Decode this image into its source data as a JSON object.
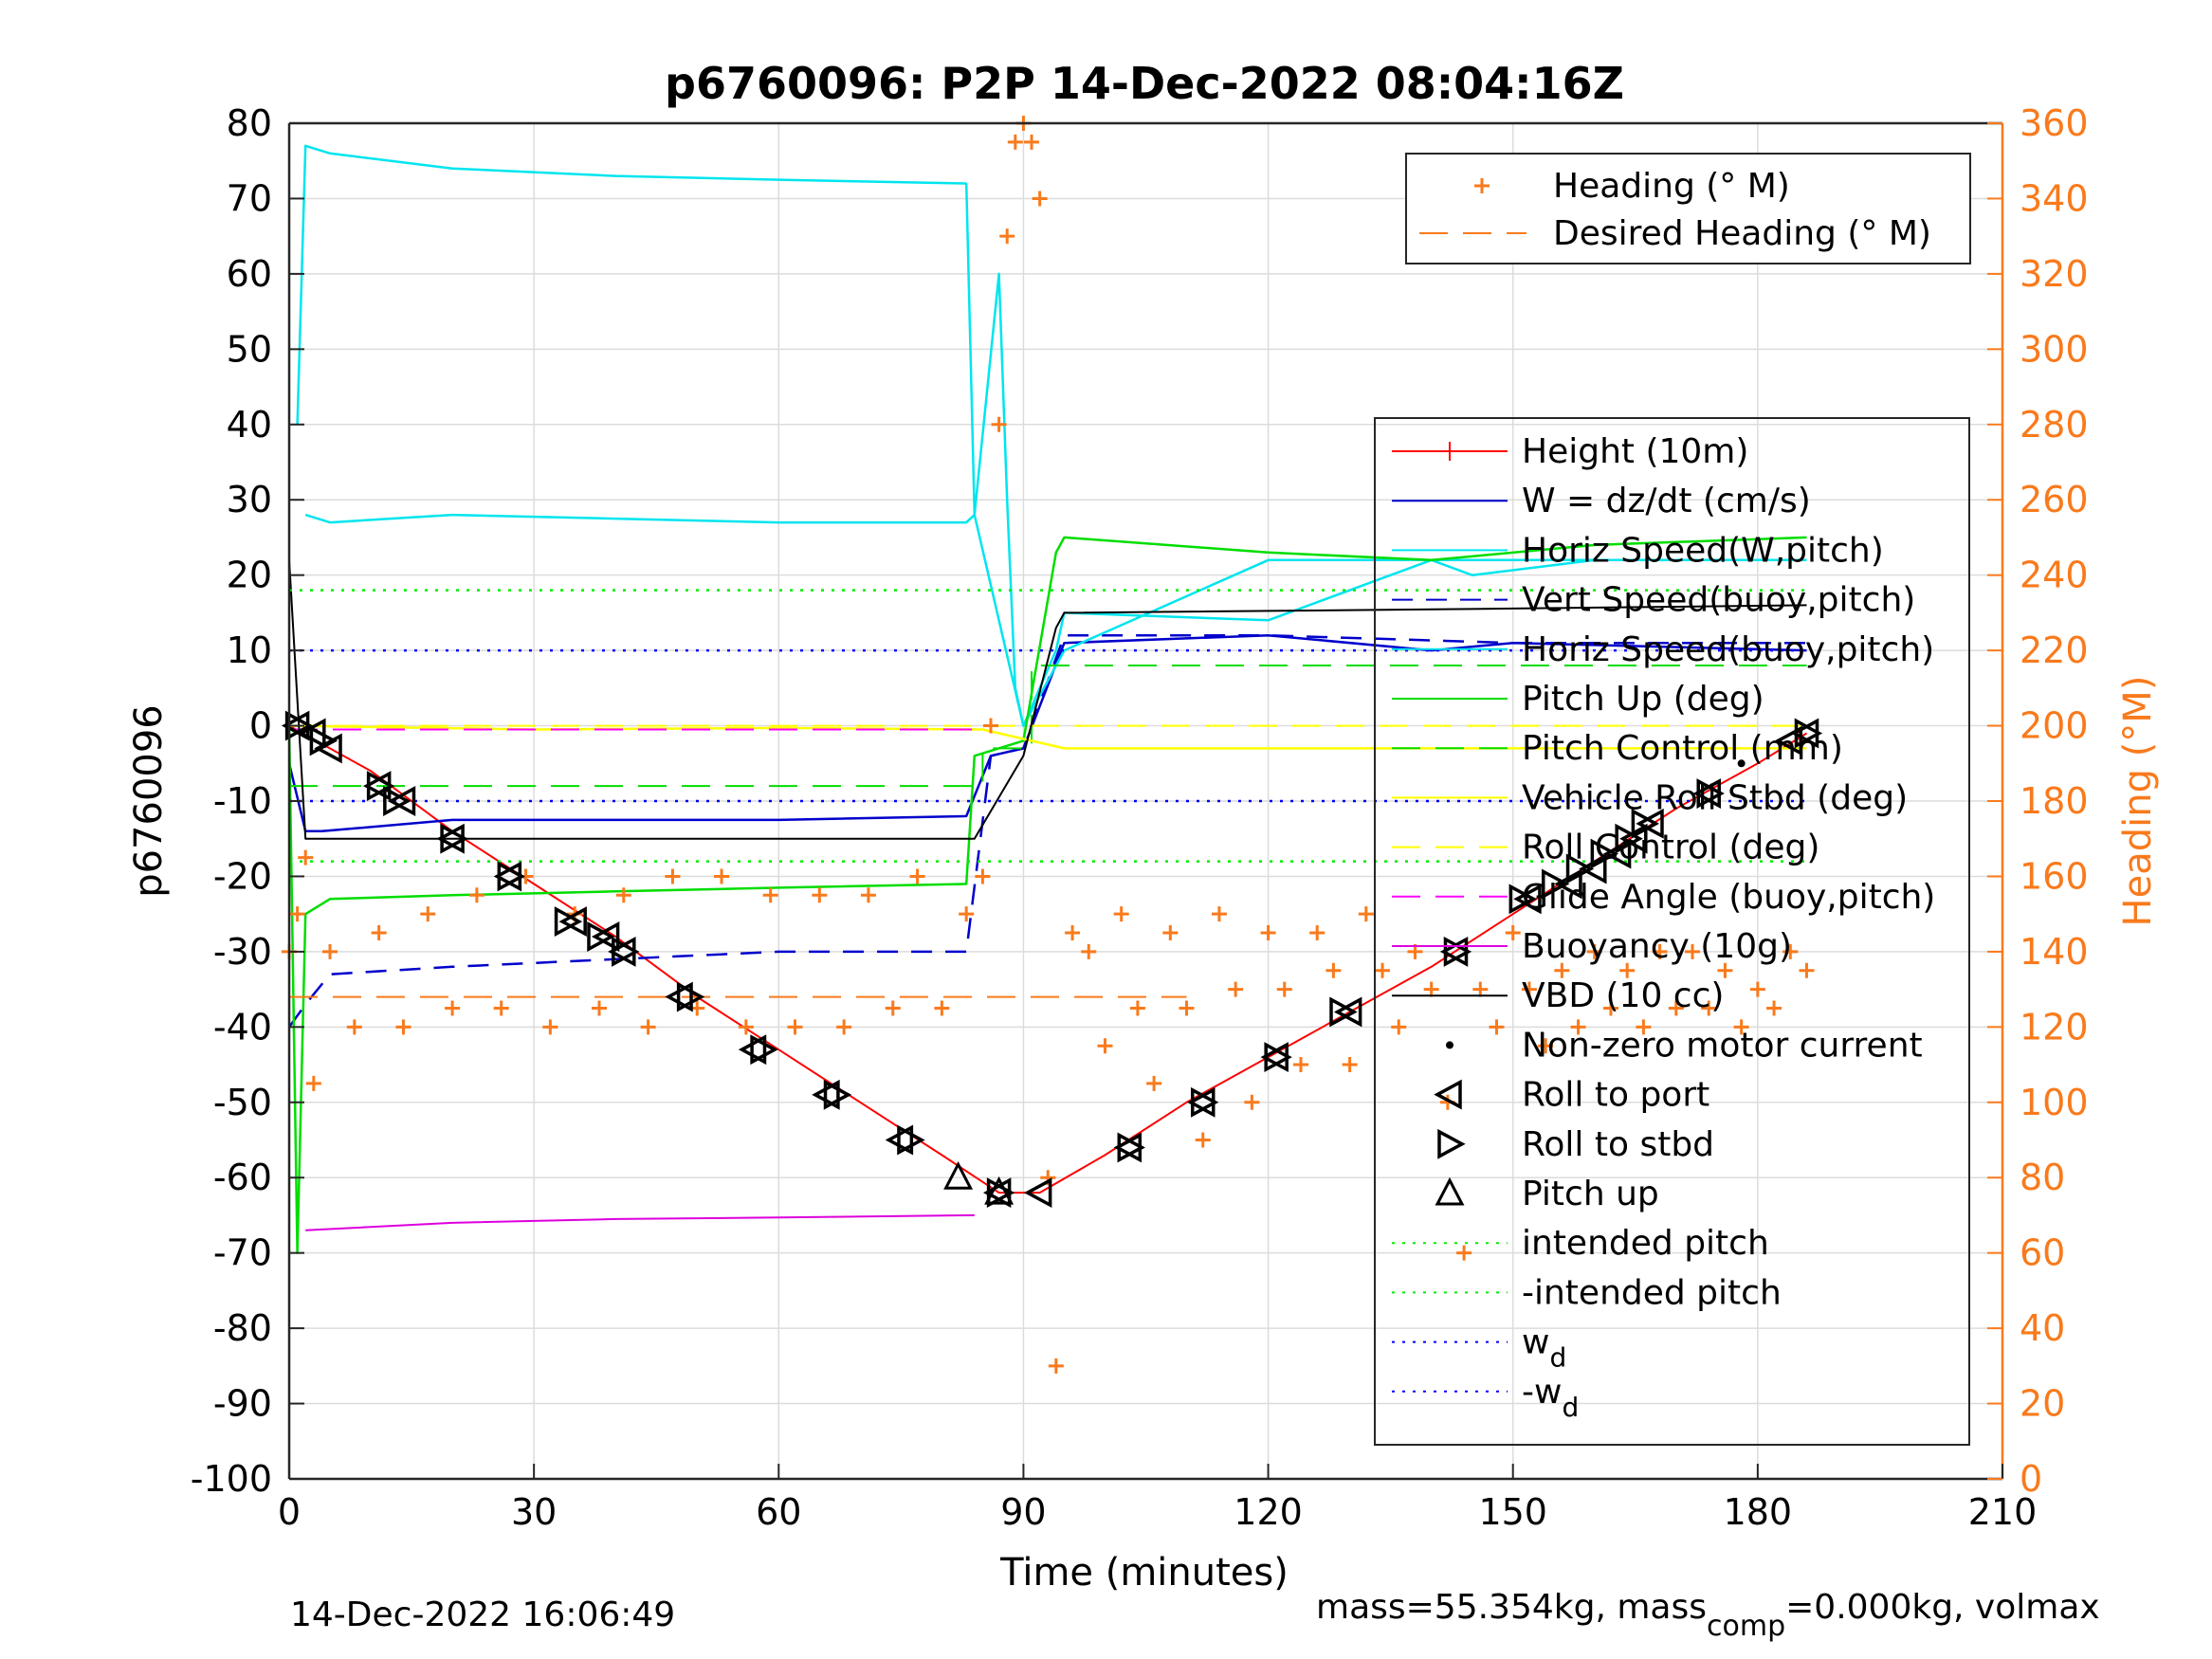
{
  "chart_data": {
    "type": "line",
    "title": "p6760096: P2P 14-Dec-2022 08:04:16Z",
    "xlabel": "Time (minutes)",
    "ylabel_left": "p6760096",
    "ylabel_right": "Heading (°M)",
    "xlim": [
      0,
      210
    ],
    "ylim_left": [
      -100,
      80
    ],
    "ylim_right": [
      0,
      360
    ],
    "xticks": [
      "0",
      "30",
      "60",
      "90",
      "120",
      "150",
      "180",
      "210"
    ],
    "yticks_left": [
      "80",
      "70",
      "60",
      "50",
      "40",
      "30",
      "20",
      "10",
      "0",
      "-10",
      "-20",
      "-30",
      "-40",
      "-50",
      "-60",
      "-70",
      "-80",
      "-90",
      "-100"
    ],
    "yticks_right": [
      "360",
      "340",
      "320",
      "300",
      "280",
      "260",
      "240",
      "220",
      "200",
      "180",
      "160",
      "140",
      "120",
      "100",
      "80",
      "60",
      "40",
      "20",
      "0"
    ],
    "grid": true,
    "legend_right_axis": {
      "placement": "top-right",
      "entries": [
        "Heading (° M)",
        "Desired Heading (° M)"
      ]
    },
    "legend_left_axis": {
      "placement": "right",
      "entries": [
        "Height (10m)",
        "W = dz/dt (cm/s)",
        "Horiz Speed(W,pitch)",
        "Vert Speed(buoy,pitch)",
        "Horiz Speed(buoy,pitch)",
        "Pitch Up (deg)",
        "Pitch Control (mm)",
        "Vehicle Roll Stbd (deg)",
        "Roll Control (deg)",
        "Glide Angle (buoy,pitch)",
        "Buoyancy (10g)",
        "VBD (10 cc)",
        "Non-zero motor current",
        "Roll to port",
        "Roll to stbd",
        "Pitch up",
        "intended pitch",
        "-intended pitch",
        "w",
        "-w"
      ],
      "subscript": "d"
    },
    "colors": {
      "height": "#ff0000",
      "w": "#0000cc",
      "horiz_speed": "#00e5ee",
      "pitch": "#00dd00",
      "roll": "#ffff00",
      "glide": "#ff00ff",
      "buoyancy": "#dd00dd",
      "vbd": "#000000",
      "heading": "#f97a1c",
      "axis_right": "#f97a1c",
      "wd": "#0000ff",
      "intended_pitch": "#00ee00"
    },
    "series": [
      {
        "name": "Height (10m)",
        "x": [
          0,
          10,
          20,
          30,
          40,
          50,
          60,
          70,
          80,
          87,
          92,
          100,
          110,
          120,
          130,
          140,
          150,
          160,
          170,
          180,
          186
        ],
        "y": [
          0,
          -6,
          -14,
          -21,
          -28,
          -36,
          -43,
          -50,
          -57,
          -62,
          -62,
          -57,
          -50,
          -44,
          -38,
          -32,
          -25,
          -18,
          -11,
          -5,
          -1
        ]
      },
      {
        "name": "W = dz/dt (cm/s)",
        "x": [
          0,
          2,
          4,
          20,
          40,
          60,
          83,
          86,
          90,
          95,
          120,
          140,
          150,
          186
        ],
        "y": [
          -5,
          -14,
          -14,
          -12.5,
          -12.5,
          -12.5,
          -12,
          -4,
          -3,
          11,
          12,
          10,
          11,
          10
        ]
      },
      {
        "name": "Horiz Speed(W,pitch)",
        "x": [
          1,
          2,
          5,
          20,
          40,
          60,
          83,
          84,
          87,
          88,
          89,
          90,
          94,
          95,
          120,
          140,
          145,
          160,
          186
        ],
        "y": [
          40,
          77,
          76,
          74,
          73,
          72.5,
          72,
          28,
          60,
          30,
          5,
          0,
          10,
          15,
          14,
          22,
          20,
          22,
          22
        ]
      },
      {
        "name": "Vert Speed(buoy,pitch)",
        "x": [
          0,
          2,
          5,
          20,
          40,
          60,
          83,
          86,
          90,
          95,
          120,
          150,
          186
        ],
        "y": [
          -40,
          -37,
          -33,
          -32,
          -31,
          -30,
          -30,
          -4,
          -3,
          12,
          12,
          11,
          11
        ]
      },
      {
        "name": "Horiz Speed(buoy,pitch)",
        "x": [
          2,
          5,
          20,
          40,
          60,
          83,
          84,
          90,
          95,
          120,
          140,
          160,
          186
        ],
        "y": [
          28,
          27,
          28,
          27.5,
          27,
          27,
          28,
          0,
          10,
          22,
          22,
          22,
          22
        ]
      },
      {
        "name": "Pitch Up (deg)",
        "x": [
          0,
          1,
          2,
          5,
          20,
          40,
          60,
          83,
          84,
          90,
          94,
          95,
          120,
          140,
          160,
          186
        ],
        "y": [
          0,
          -70,
          -25,
          -23,
          -22.5,
          -22,
          -21.5,
          -21,
          -4,
          -2,
          23,
          25,
          23,
          22,
          24,
          25
        ]
      },
      {
        "name": "Pitch Control (mm)",
        "x": [
          0,
          85,
          85,
          91,
          91,
          186
        ],
        "y": [
          -8,
          -8,
          -3,
          -3,
          8,
          8
        ]
      },
      {
        "name": "Vehicle Roll Stbd (deg)",
        "x": [
          0,
          30,
          60,
          85,
          95,
          186
        ],
        "y": [
          0,
          -0.5,
          -0.3,
          -0.5,
          -3,
          -3
        ]
      },
      {
        "name": "Roll Control (deg)",
        "x": [
          0,
          186
        ],
        "y": [
          0,
          0
        ]
      },
      {
        "name": "Glide Angle (buoy,pitch)",
        "x": [
          0,
          84
        ],
        "y": [
          -0.5,
          -0.5
        ]
      },
      {
        "name": "Buoyancy (10g)",
        "x": [
          2,
          20,
          40,
          60,
          84
        ],
        "y": [
          -67,
          -66,
          -65.5,
          -65.3,
          -65
        ]
      },
      {
        "name": "VBD (10 cc)",
        "x": [
          0,
          2,
          84,
          90,
          94,
          95,
          145,
          186
        ],
        "y": [
          22,
          -15,
          -15,
          -4,
          13,
          15,
          15.5,
          16
        ]
      },
      {
        "name": "Heading (° M)",
        "axis": "right",
        "x": [
          0,
          1,
          2,
          3,
          5,
          8,
          11,
          14,
          17,
          20,
          23,
          26,
          29,
          32,
          35,
          38,
          41,
          44,
          47,
          50,
          53,
          56,
          59,
          62,
          65,
          68,
          71,
          74,
          77,
          80,
          83,
          85,
          86,
          87,
          88,
          89,
          90,
          91,
          92,
          93,
          94,
          96,
          98,
          100,
          102,
          104,
          106,
          108,
          110,
          112,
          114,
          116,
          118,
          120,
          122,
          124,
          126,
          128,
          130,
          132,
          134,
          136,
          138,
          140,
          142,
          144,
          146,
          148,
          150,
          152,
          154,
          156,
          158,
          160,
          162,
          164,
          166,
          168,
          170,
          172,
          174,
          176,
          178,
          180,
          182,
          184,
          186
        ],
        "y": [
          140,
          150,
          165,
          105,
          140,
          120,
          145,
          120,
          150,
          125,
          155,
          125,
          160,
          120,
          150,
          125,
          155,
          120,
          160,
          125,
          160,
          120,
          155,
          120,
          155,
          120,
          155,
          125,
          160,
          125,
          150,
          160,
          200,
          280,
          330,
          355,
          360,
          355,
          340,
          80,
          30,
          145,
          140,
          115,
          150,
          125,
          105,
          145,
          125,
          90,
          150,
          130,
          100,
          145,
          130,
          110,
          145,
          135,
          110,
          150,
          135,
          120,
          140,
          130,
          100,
          60,
          130,
          120,
          145,
          130,
          115,
          135,
          120,
          140,
          125,
          135,
          120,
          140,
          125,
          140,
          125,
          135,
          120,
          130,
          125,
          140,
          135
        ]
      },
      {
        "name": "Desired Heading (° M)",
        "axis": "right",
        "x": [
          0,
          110
        ],
        "y": [
          128,
          128
        ]
      },
      {
        "name": "Non-zero motor current",
        "x": [
          178
        ],
        "y": [
          -5
        ]
      },
      {
        "name": "Roll to port",
        "x": [
          1,
          3,
          5,
          11,
          14,
          20,
          27,
          35,
          39,
          41,
          48,
          57,
          66,
          75,
          87,
          92,
          103,
          112,
          121,
          130,
          143,
          152,
          157,
          160,
          163,
          165,
          167,
          174,
          184,
          186
        ],
        "y": [
          0,
          -1,
          -3,
          -8,
          -10,
          -15,
          -20,
          -26,
          -28,
          -30,
          -36,
          -43,
          -49,
          -55,
          -62,
          -62,
          -56,
          -50,
          -44,
          -38,
          -30,
          -23,
          -21,
          -19,
          -17,
          -15,
          -13,
          -9,
          -2,
          -1
        ]
      },
      {
        "name": "Roll to stbd",
        "x": [
          1,
          4,
          11,
          13,
          20,
          27,
          34,
          38,
          41,
          49,
          58,
          67,
          76,
          87,
          103,
          112,
          121,
          129,
          143,
          151,
          155,
          158,
          161,
          164,
          166,
          174,
          186
        ],
        "y": [
          0,
          -2,
          -8,
          -10,
          -15,
          -20,
          -26,
          -28,
          -30,
          -36,
          -43,
          -49,
          -55,
          -62,
          -56,
          -50,
          -44,
          -38,
          -30,
          -23,
          -21,
          -19,
          -17,
          -15,
          -13,
          -9,
          -1
        ]
      },
      {
        "name": "Pitch up",
        "x": [
          82,
          87
        ],
        "y": [
          -60,
          -62
        ]
      },
      {
        "name": "intended pitch",
        "x": [
          0,
          186
        ],
        "y": [
          18,
          18
        ]
      },
      {
        "name": "-intended pitch",
        "x": [
          0,
          186
        ],
        "y": [
          -18,
          -18
        ]
      },
      {
        "name": "w_d",
        "x": [
          0,
          186
        ],
        "y": [
          10,
          10
        ]
      },
      {
        "name": "-w_d",
        "x": [
          0,
          186
        ],
        "y": [
          -10,
          -10
        ]
      }
    ],
    "footer_left": "14-Dec-2022 16:06:49",
    "footer_right": {
      "prefix": "mass=55.354kg, mass",
      "sub": "comp",
      "suffix": "=0.000kg, volmax"
    }
  }
}
